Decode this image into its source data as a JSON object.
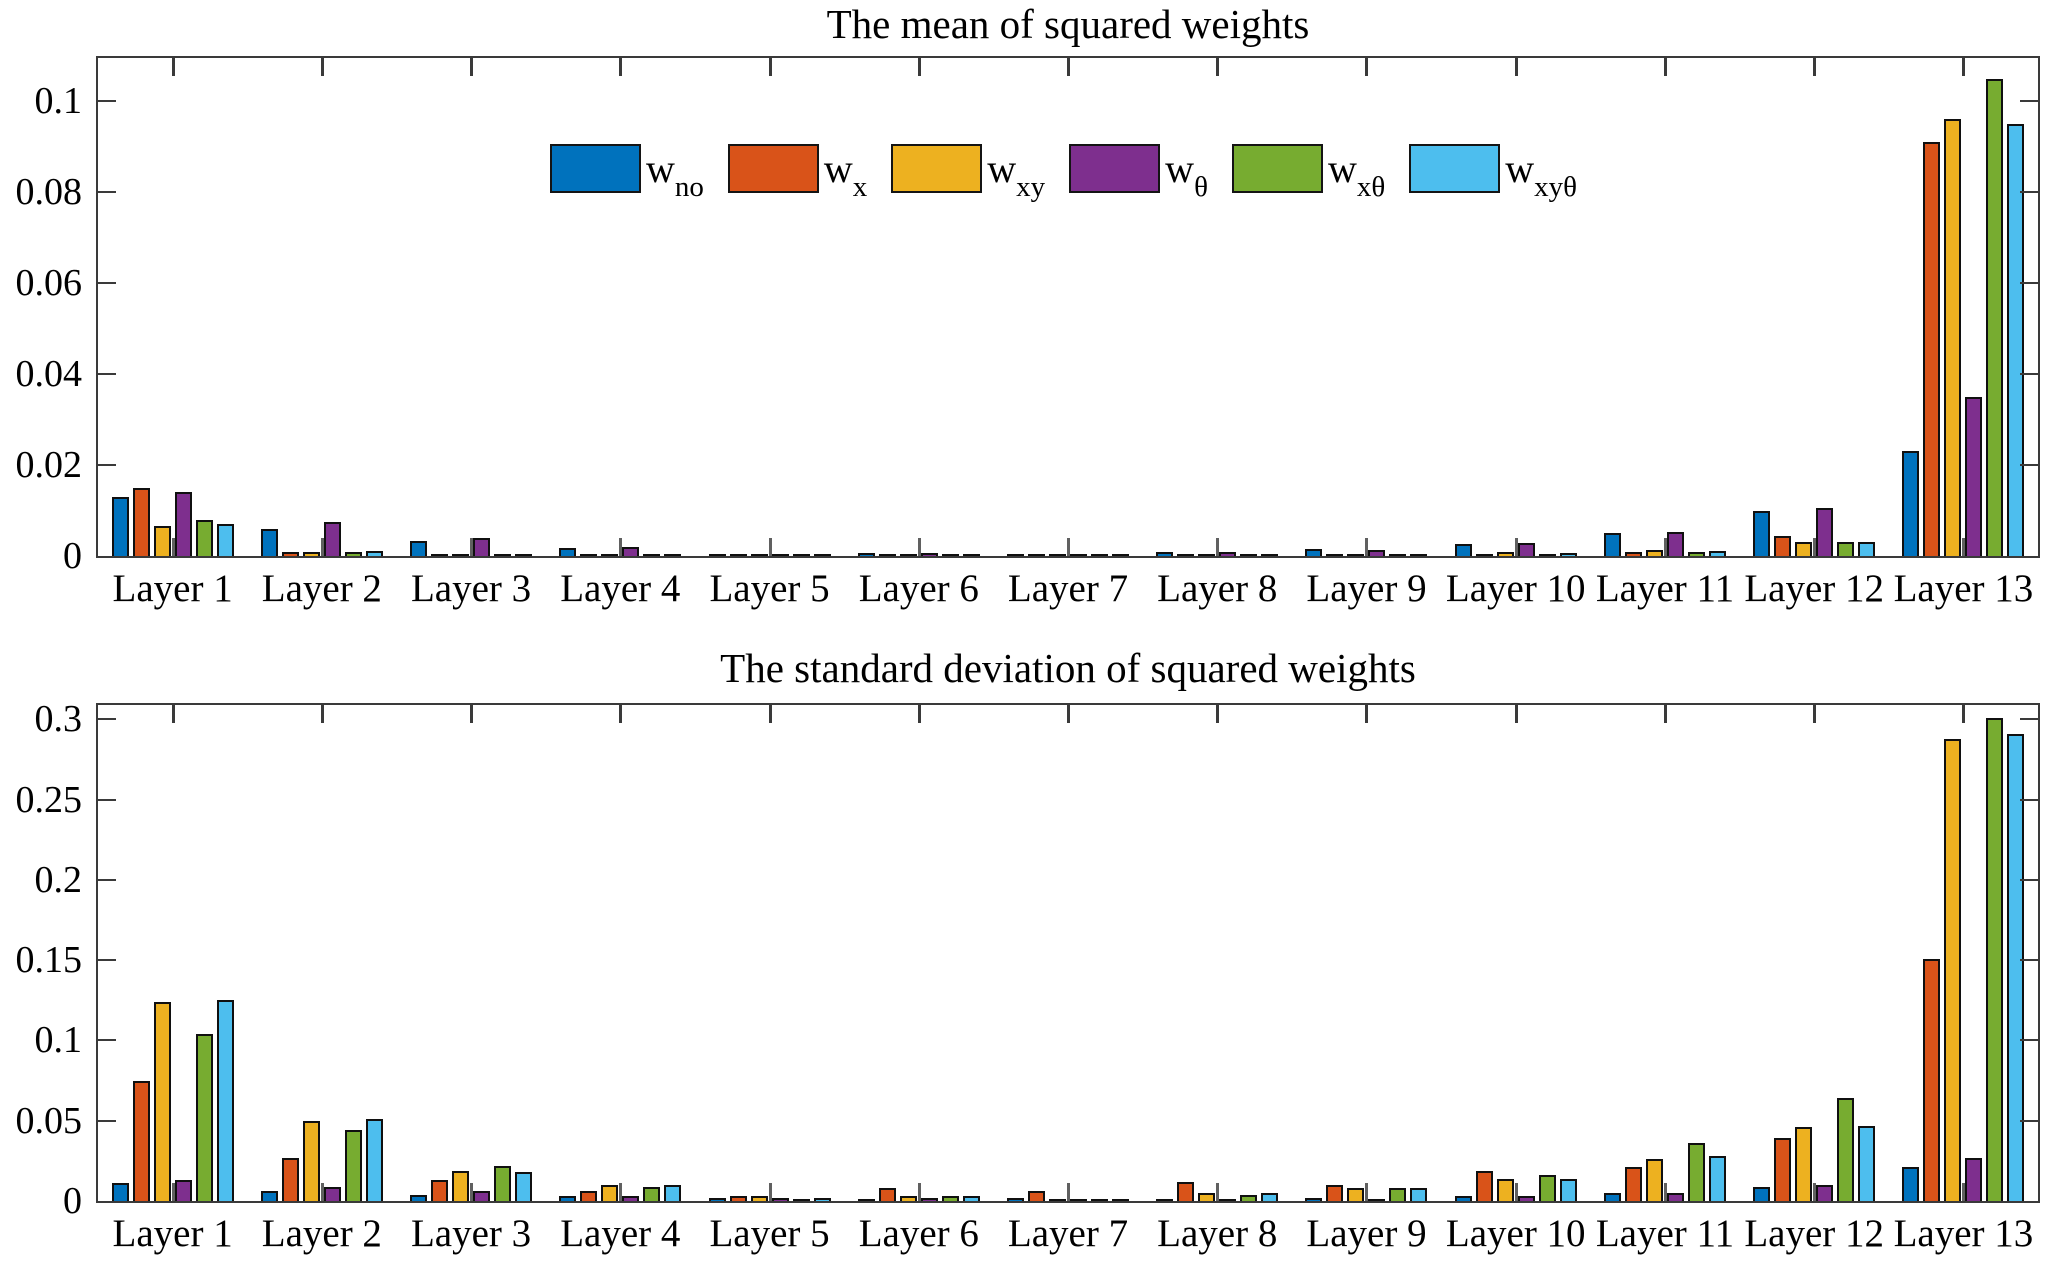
{
  "figure": {
    "background": "#ffffff",
    "axis_color": "#3a3a3a",
    "bar_edge_color": "#101010"
  },
  "chart_data": [
    {
      "type": "bar",
      "title": "The mean of squared weights",
      "xlabel": "",
      "ylabel": "",
      "grid": false,
      "legend": true,
      "legend_position": "north-inside",
      "ylim": [
        0,
        0.1095
      ],
      "yticks": [
        {
          "value": 0,
          "label": "0"
        },
        {
          "value": 0.02,
          "label": "0.02"
        },
        {
          "value": 0.04,
          "label": "0.04"
        },
        {
          "value": 0.06,
          "label": "0.06"
        },
        {
          "value": 0.08,
          "label": "0.08"
        },
        {
          "value": 0.1,
          "label": "0.1"
        }
      ],
      "categories": [
        "Layer 1",
        "Layer 2",
        "Layer 3",
        "Layer 4",
        "Layer 5",
        "Layer 6",
        "Layer 7",
        "Layer 8",
        "Layer 9",
        "Layer 10",
        "Layer 11",
        "Layer 12",
        "Layer 13"
      ],
      "series": [
        {
          "name": "w",
          "sub": "no",
          "color": "#0072BD",
          "values": [
            0.013,
            0.006,
            0.0033,
            0.0018,
            0.0004,
            0.0007,
            0.0002,
            0.0008,
            0.0015,
            0.0027,
            0.005,
            0.01,
            0.023
          ]
        },
        {
          "name": "w",
          "sub": "x",
          "color": "#D95319",
          "values": [
            0.015,
            0.001,
            0.0003,
            0.0002,
            0.0001,
            0.0002,
            0.0001,
            0.0001,
            0.0002,
            0.0004,
            0.001,
            0.0045,
            0.091
          ]
        },
        {
          "name": "w",
          "sub": "xy",
          "color": "#EDB120",
          "values": [
            0.0065,
            0.001,
            0.0003,
            0.0002,
            0.0001,
            0.0002,
            0.0001,
            0.0002,
            0.0004,
            0.0009,
            0.0013,
            0.003,
            0.096
          ]
        },
        {
          "name": "w",
          "sub": "θ",
          "color": "#7E2F8E",
          "values": [
            0.014,
            0.0075,
            0.004,
            0.002,
            0.0003,
            0.0006,
            0.0003,
            0.0009,
            0.0014,
            0.0028,
            0.0052,
            0.0105,
            0.035
          ]
        },
        {
          "name": "w",
          "sub": "xθ",
          "color": "#77AC30",
          "values": [
            0.008,
            0.001,
            0.0003,
            0.0002,
            0.0001,
            0.0002,
            0.0001,
            0.0001,
            0.0002,
            0.0004,
            0.0008,
            0.003,
            0.105
          ]
        },
        {
          "name": "w",
          "sub": "xyθ",
          "color": "#4DBEEE",
          "values": [
            0.007,
            0.0012,
            0.0004,
            0.0002,
            0.0001,
            0.0002,
            0.0001,
            0.0002,
            0.0003,
            0.0006,
            0.0012,
            0.0031,
            0.095
          ]
        }
      ]
    },
    {
      "type": "bar",
      "title": "The standard deviation of squared weights",
      "xlabel": "",
      "ylabel": "",
      "grid": false,
      "legend": false,
      "ylim": [
        0,
        0.309
      ],
      "yticks": [
        {
          "value": 0,
          "label": "0"
        },
        {
          "value": 0.05,
          "label": "0.05"
        },
        {
          "value": 0.1,
          "label": "0.1"
        },
        {
          "value": 0.15,
          "label": "0.15"
        },
        {
          "value": 0.2,
          "label": "0.2"
        },
        {
          "value": 0.25,
          "label": "0.25"
        },
        {
          "value": 0.3,
          "label": "0.3"
        }
      ],
      "categories": [
        "Layer 1",
        "Layer 2",
        "Layer 3",
        "Layer 4",
        "Layer 5",
        "Layer 6",
        "Layer 7",
        "Layer 8",
        "Layer 9",
        "Layer 10",
        "Layer 11",
        "Layer 12",
        "Layer 13"
      ],
      "series": [
        {
          "name": "w",
          "sub": "no",
          "color": "#0072BD",
          "values": [
            0.011,
            0.006,
            0.004,
            0.003,
            0.002,
            0.0015,
            0.002,
            0.001,
            0.002,
            0.003,
            0.005,
            0.009,
            0.021
          ]
        },
        {
          "name": "w",
          "sub": "x",
          "color": "#D95319",
          "values": [
            0.075,
            0.027,
            0.013,
            0.006,
            0.003,
            0.008,
            0.006,
            0.012,
            0.01,
            0.019,
            0.021,
            0.039,
            0.151
          ]
        },
        {
          "name": "w",
          "sub": "xy",
          "color": "#EDB120",
          "values": [
            0.124,
            0.05,
            0.019,
            0.01,
            0.003,
            0.003,
            0.001,
            0.005,
            0.008,
            0.014,
            0.026,
            0.046,
            0.288
          ]
        },
        {
          "name": "w",
          "sub": "θ",
          "color": "#7E2F8E",
          "values": [
            0.013,
            0.009,
            0.006,
            0.003,
            0.002,
            0.002,
            0.0015,
            0.0015,
            0.0015,
            0.003,
            0.005,
            0.01,
            0.027
          ]
        },
        {
          "name": "w",
          "sub": "xθ",
          "color": "#77AC30",
          "values": [
            0.104,
            0.044,
            0.022,
            0.009,
            0.001,
            0.003,
            0.0005,
            0.004,
            0.008,
            0.016,
            0.036,
            0.064,
            0.301
          ]
        },
        {
          "name": "w",
          "sub": "xyθ",
          "color": "#4DBEEE",
          "values": [
            0.125,
            0.051,
            0.018,
            0.01,
            0.002,
            0.003,
            0.001,
            0.005,
            0.008,
            0.014,
            0.028,
            0.047,
            0.291
          ]
        }
      ]
    }
  ]
}
